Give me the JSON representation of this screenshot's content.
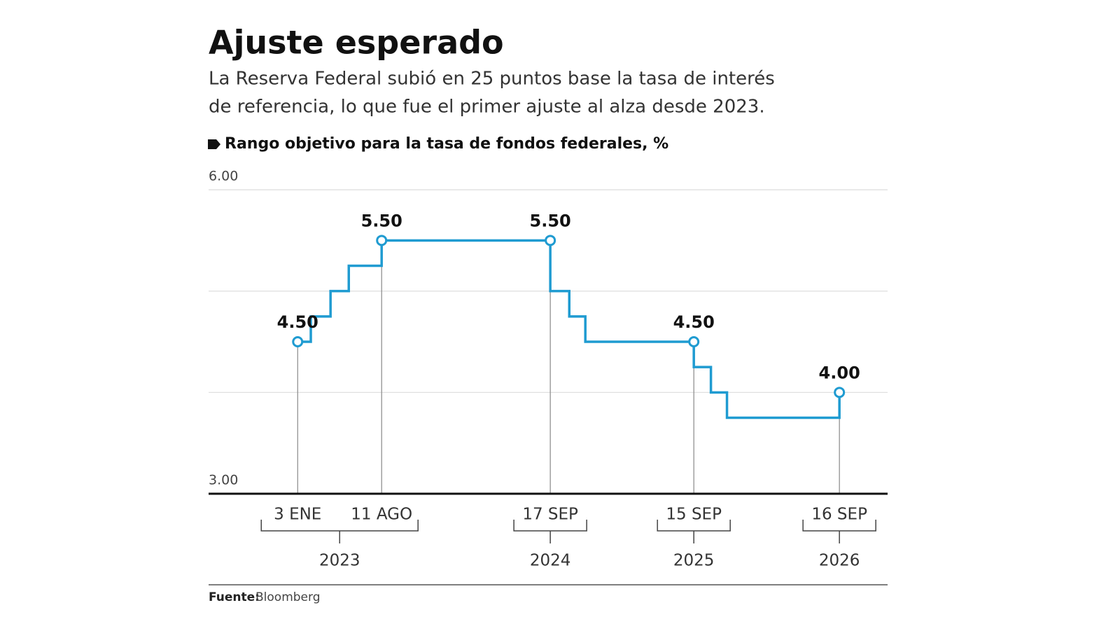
{
  "chart_data": {
    "type": "step",
    "title": "Ajuste esperado",
    "subtitle": [
      "La Reserva Federal subió en 25 puntos base la tasa de interés",
      "de referencia, lo que fue el primer ajuste al alza desde 2023."
    ],
    "y_label": "Rango objetivo para la tasa de fondos federales, %",
    "color": "#1f9bd1",
    "x": [
      2023.0,
      2023.09,
      2023.225,
      2023.35,
      2023.575,
      2024.73,
      2024.73,
      2024.86,
      2024.97,
      2025.713,
      2025.713,
      2025.83,
      2025.94,
      2026.71
    ],
    "values": [
      4.5,
      4.75,
      5.0,
      5.25,
      5.5,
      5.5,
      5.0,
      4.75,
      4.5,
      4.5,
      4.25,
      4.0,
      3.75,
      4.0
    ],
    "value_labels": [
      "4.50",
      null,
      null,
      null,
      "5.50",
      "5.50",
      null,
      null,
      null,
      "4.50",
      null,
      null,
      null,
      "4.00"
    ],
    "date_labels": [
      "3 ENE",
      null,
      null,
      null,
      "11 AGO",
      "17 SEP",
      null,
      null,
      null,
      "15 SEP",
      null,
      null,
      null,
      "16 SEP"
    ],
    "years": [
      "2023",
      "2024",
      "2025",
      "2026"
    ],
    "xlim": [
      2022.39,
      2027.04
    ],
    "ylim": [
      3,
      6
    ],
    "yticks": [
      {
        "value": 3,
        "label": "3.00"
      },
      {
        "value": 4,
        "label": null
      },
      {
        "value": 5,
        "label": null
      },
      {
        "value": 6,
        "label": "6.00"
      }
    ],
    "grid": true,
    "source_label": "Fuente:",
    "source": "Bloomberg"
  }
}
